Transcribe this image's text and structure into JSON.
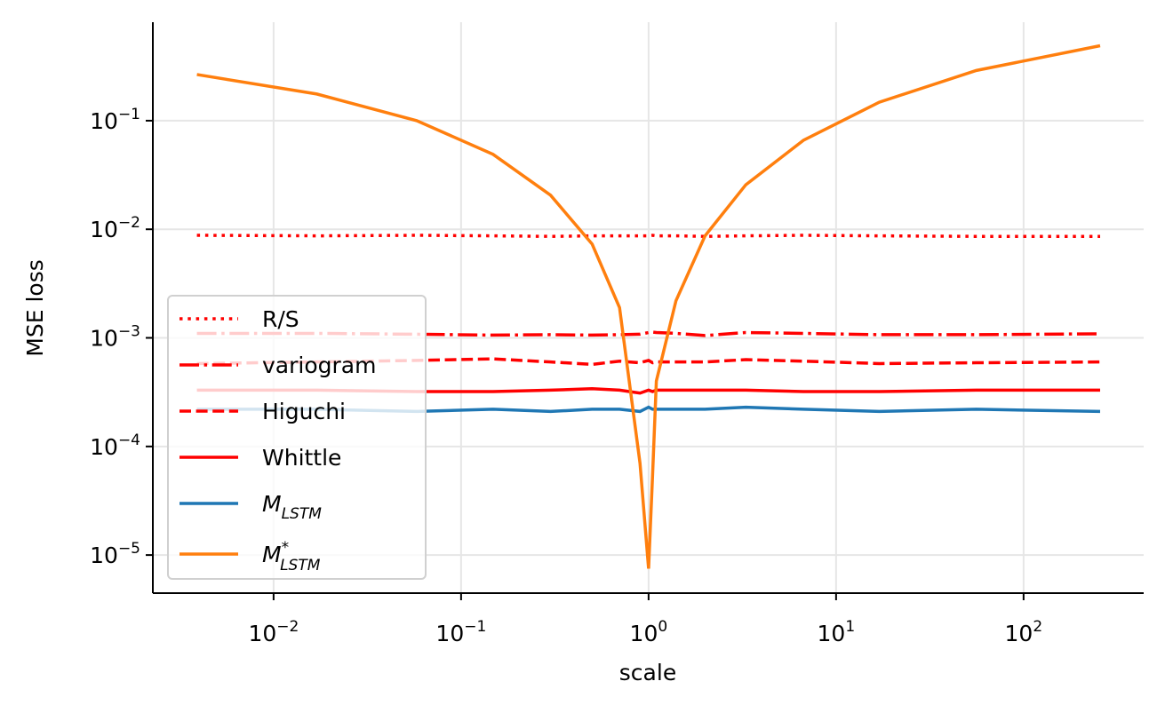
{
  "chart_data": {
    "type": "line",
    "xlabel": "scale",
    "ylabel": "MSE loss",
    "xscale": "log",
    "yscale": "log",
    "grid": true,
    "legend": "lower left",
    "xlim": [
      0.00227,
      437
    ],
    "ylim": [
      4.46e-06,
      0.807
    ],
    "xticks": [
      {
        "value": 0.01,
        "label": "10^−2"
      },
      {
        "value": 0.1,
        "label": "10^−1"
      },
      {
        "value": 1,
        "label": "10^0"
      },
      {
        "value": 10,
        "label": "10^1"
      },
      {
        "value": 100,
        "label": "10^2"
      }
    ],
    "yticks": [
      {
        "value": 1e-05,
        "label": "10^−5"
      },
      {
        "value": 0.0001,
        "label": "10^−4"
      },
      {
        "value": 0.001,
        "label": "10^−3"
      },
      {
        "value": 0.01,
        "label": "10^−2"
      },
      {
        "value": 0.1,
        "label": "10^−1"
      }
    ],
    "x": [
      0.0039,
      0.017,
      0.058,
      0.148,
      0.3,
      0.5,
      0.7,
      0.9,
      1.0,
      1.05,
      1.1,
      1.4,
      2,
      3.3,
      6.7,
      17,
      56,
      256
    ],
    "series": [
      {
        "name": "R/S",
        "color": "#ff0000",
        "style": "dotted",
        "values": [
          0.0088,
          0.0087,
          0.0088,
          0.0087,
          0.0086,
          0.0087,
          0.0087,
          0.0087,
          0.0087,
          0.0088,
          0.0087,
          0.0087,
          0.0086,
          0.0087,
          0.0088,
          0.0087,
          0.0086,
          0.0086
        ]
      },
      {
        "name": "variogram",
        "color": "#ff0000",
        "style": "dashdot",
        "values": [
          0.0011,
          0.0011,
          0.00108,
          0.00106,
          0.00107,
          0.00106,
          0.00107,
          0.00108,
          0.00112,
          0.00113,
          0.00112,
          0.0011,
          0.00105,
          0.00112,
          0.0011,
          0.00107,
          0.00107,
          0.00109
        ]
      },
      {
        "name": "Higuchi",
        "color": "#ff0000",
        "style": "dashed",
        "values": [
          0.00058,
          0.0006,
          0.00062,
          0.00064,
          0.0006,
          0.00057,
          0.00061,
          0.00059,
          0.00062,
          0.00059,
          0.0006,
          0.0006,
          0.0006,
          0.00063,
          0.00061,
          0.00058,
          0.00059,
          0.0006
        ]
      },
      {
        "name": "Whittle",
        "color": "#ff0000",
        "style": "solid",
        "values": [
          0.00033,
          0.00033,
          0.00032,
          0.00032,
          0.00033,
          0.00034,
          0.00033,
          0.00031,
          0.00033,
          0.00032,
          0.00033,
          0.00033,
          0.00033,
          0.00033,
          0.00032,
          0.00032,
          0.00033,
          0.00033
        ]
      },
      {
        "name": "M_LSTM",
        "color": "#1f77b4",
        "style": "solid",
        "values": [
          0.00022,
          0.00022,
          0.00021,
          0.00022,
          0.00021,
          0.00022,
          0.00022,
          0.00021,
          0.00023,
          0.00022,
          0.00022,
          0.00022,
          0.00022,
          0.00023,
          0.00022,
          0.00021,
          0.00022,
          0.00021
        ]
      },
      {
        "name": "M^*_LSTM",
        "color": "#ff7f0e",
        "style": "solid",
        "values": [
          0.266,
          0.176,
          0.1,
          0.049,
          0.0206,
          0.0073,
          0.0019,
          7e-05,
          7.5e-06,
          5.4e-05,
          0.0004,
          0.0022,
          0.0087,
          0.0257,
          0.066,
          0.148,
          0.29,
          0.49
        ]
      }
    ]
  }
}
